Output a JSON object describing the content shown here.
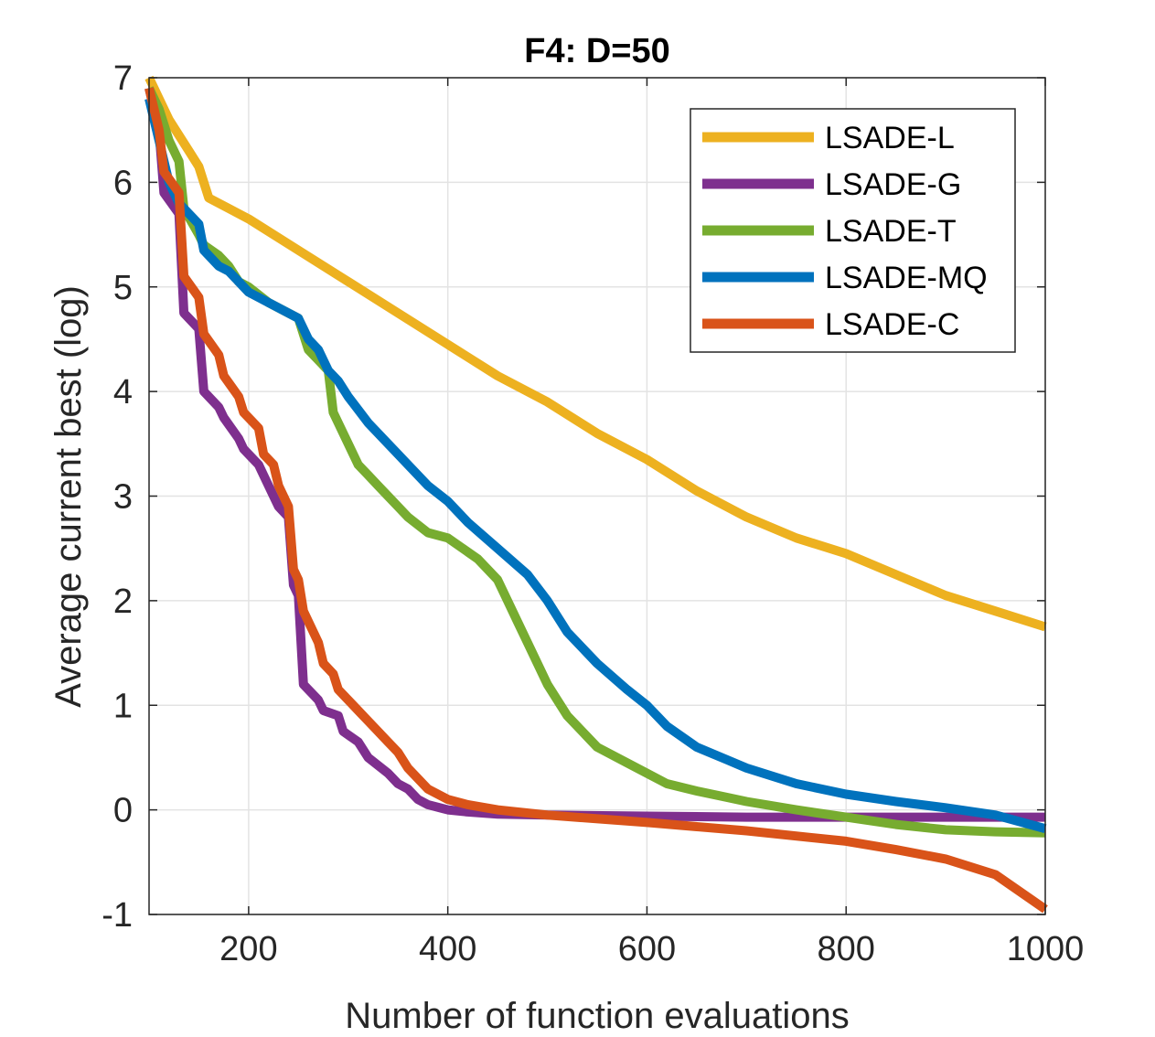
{
  "chart_data": {
    "type": "line",
    "title": "F4: D=50",
    "xlabel": "Number of function evaluations",
    "ylabel": "Average current best (log)",
    "xlim": [
      100,
      1000
    ],
    "ylim": [
      -1,
      7
    ],
    "xticks": [
      200,
      400,
      600,
      800,
      1000
    ],
    "yticks": [
      -1,
      0,
      1,
      2,
      3,
      4,
      5,
      6,
      7
    ],
    "xtick_labels": [
      "200",
      "400",
      "600",
      "800",
      "1000"
    ],
    "ytick_labels": [
      "-1",
      "0",
      "1",
      "2",
      "3",
      "4",
      "5",
      "6",
      "7"
    ],
    "grid": true,
    "legend_position": "top-right",
    "series": [
      {
        "name": "LSADE-L",
        "color": "#EDB120",
        "x": [
          100,
          120,
          140,
          150,
          160,
          200,
          250,
          300,
          350,
          400,
          450,
          500,
          550,
          600,
          650,
          700,
          750,
          800,
          850,
          900,
          950,
          1000
        ],
        "y": [
          7.0,
          6.6,
          6.3,
          6.15,
          5.85,
          5.65,
          5.35,
          5.05,
          4.75,
          4.45,
          4.15,
          3.9,
          3.6,
          3.35,
          3.05,
          2.8,
          2.6,
          2.45,
          2.25,
          2.05,
          1.9,
          1.75
        ]
      },
      {
        "name": "LSADE-G",
        "color": "#7E2F8E",
        "x": [
          100,
          110,
          115,
          130,
          135,
          150,
          155,
          170,
          175,
          190,
          195,
          210,
          215,
          225,
          230,
          240,
          245,
          250,
          255,
          270,
          275,
          290,
          295,
          310,
          320,
          340,
          350,
          360,
          370,
          380,
          400,
          420,
          450,
          500,
          600,
          700,
          800,
          900,
          1000
        ],
        "y": [
          6.9,
          6.5,
          5.9,
          5.7,
          4.75,
          4.6,
          4.0,
          3.85,
          3.75,
          3.55,
          3.45,
          3.3,
          3.2,
          3.0,
          2.9,
          2.8,
          2.15,
          2.05,
          1.2,
          1.05,
          0.95,
          0.9,
          0.75,
          0.65,
          0.5,
          0.35,
          0.25,
          0.2,
          0.1,
          0.05,
          0.0,
          -0.02,
          -0.04,
          -0.05,
          -0.06,
          -0.07,
          -0.07,
          -0.07,
          -0.07
        ]
      },
      {
        "name": "LSADE-T",
        "color": "#77AC30",
        "x": [
          100,
          110,
          120,
          130,
          135,
          150,
          155,
          170,
          180,
          190,
          200,
          220,
          250,
          260,
          270,
          280,
          285,
          300,
          310,
          320,
          330,
          340,
          350,
          360,
          380,
          400,
          430,
          450,
          460,
          470,
          480,
          490,
          500,
          520,
          550,
          580,
          600,
          620,
          650,
          680,
          700,
          750,
          800,
          850,
          900,
          950,
          1000
        ],
        "y": [
          6.9,
          6.7,
          6.4,
          6.2,
          5.75,
          5.5,
          5.4,
          5.3,
          5.2,
          5.05,
          5.0,
          4.85,
          4.7,
          4.4,
          4.3,
          4.2,
          3.8,
          3.5,
          3.3,
          3.2,
          3.1,
          3.0,
          2.9,
          2.8,
          2.65,
          2.6,
          2.4,
          2.2,
          2.0,
          1.8,
          1.6,
          1.4,
          1.2,
          0.9,
          0.6,
          0.45,
          0.35,
          0.25,
          0.18,
          0.12,
          0.08,
          0.0,
          -0.07,
          -0.14,
          -0.19,
          -0.21,
          -0.22
        ]
      },
      {
        "name": "LSADE-MQ",
        "color": "#0072BD",
        "x": [
          100,
          110,
          120,
          130,
          140,
          150,
          155,
          170,
          180,
          190,
          200,
          220,
          250,
          260,
          270,
          280,
          290,
          300,
          320,
          350,
          380,
          400,
          420,
          450,
          480,
          500,
          520,
          550,
          580,
          600,
          620,
          650,
          680,
          700,
          750,
          800,
          850,
          900,
          950,
          1000
        ],
        "y": [
          6.8,
          6.4,
          6.0,
          5.8,
          5.7,
          5.6,
          5.35,
          5.2,
          5.15,
          5.05,
          4.95,
          4.85,
          4.7,
          4.5,
          4.4,
          4.2,
          4.1,
          3.95,
          3.7,
          3.4,
          3.1,
          2.95,
          2.75,
          2.5,
          2.25,
          2.0,
          1.7,
          1.4,
          1.15,
          1.0,
          0.8,
          0.6,
          0.48,
          0.4,
          0.25,
          0.15,
          0.08,
          0.02,
          -0.05,
          -0.18
        ]
      },
      {
        "name": "LSADE-C",
        "color": "#D95319",
        "x": [
          100,
          110,
          115,
          130,
          135,
          150,
          155,
          170,
          175,
          190,
          195,
          210,
          215,
          225,
          230,
          240,
          245,
          250,
          255,
          270,
          275,
          285,
          290,
          300,
          310,
          320,
          330,
          340,
          350,
          360,
          380,
          400,
          420,
          450,
          500,
          600,
          700,
          800,
          850,
          900,
          950,
          1000
        ],
        "y": [
          6.9,
          6.5,
          6.1,
          5.9,
          5.1,
          4.9,
          4.55,
          4.35,
          4.15,
          3.95,
          3.8,
          3.65,
          3.4,
          3.3,
          3.1,
          2.9,
          2.3,
          2.2,
          1.9,
          1.6,
          1.4,
          1.3,
          1.15,
          1.05,
          0.95,
          0.85,
          0.75,
          0.65,
          0.55,
          0.4,
          0.2,
          0.1,
          0.05,
          0.0,
          -0.05,
          -0.12,
          -0.2,
          -0.3,
          -0.38,
          -0.47,
          -0.62,
          -0.95
        ]
      }
    ]
  }
}
